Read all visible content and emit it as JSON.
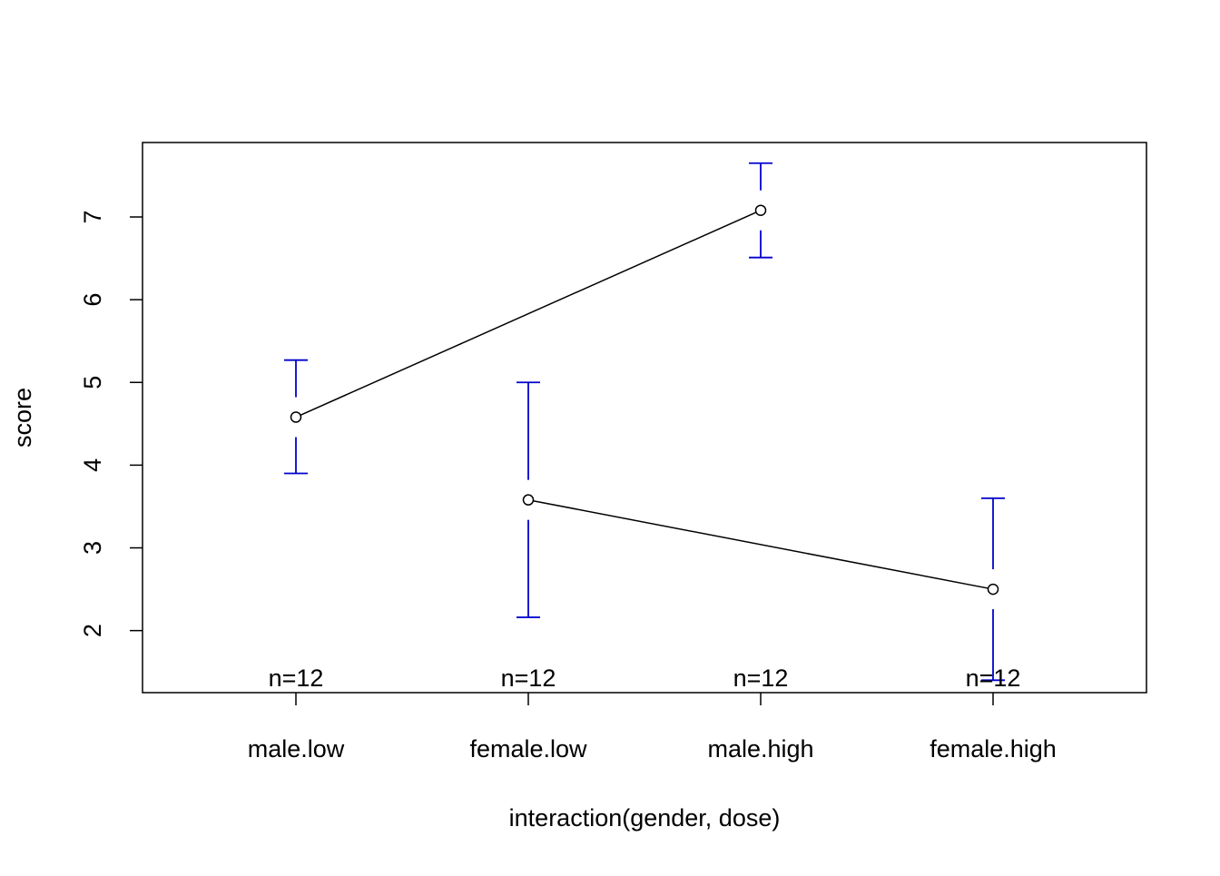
{
  "chart_data": {
    "type": "line",
    "xlabel": "interaction(gender, dose)",
    "ylabel": "score",
    "categories": [
      "male.low",
      "female.low",
      "male.high",
      "female.high"
    ],
    "y_ticks": [
      "2",
      "3",
      "4",
      "5",
      "6",
      "7"
    ],
    "ylim": [
      1.25,
      7.9
    ],
    "grid": false,
    "series": [
      {
        "points": [
          {
            "category": "male.low",
            "y": 4.58
          },
          {
            "category": "male.high",
            "y": 7.08
          }
        ]
      },
      {
        "points": [
          {
            "category": "female.low",
            "y": 3.58
          },
          {
            "category": "female.high",
            "y": 2.5
          }
        ]
      }
    ],
    "error_bars": [
      {
        "category": "male.low",
        "lower": 3.9,
        "upper": 5.27
      },
      {
        "category": "female.low",
        "lower": 2.16,
        "upper": 5.0
      },
      {
        "category": "male.high",
        "lower": 6.51,
        "upper": 7.65
      },
      {
        "category": "female.high",
        "lower": 1.4,
        "upper": 3.6
      }
    ],
    "n_labels": [
      "n=12",
      "n=12",
      "n=12",
      "n=12"
    ],
    "colors": {
      "error_bar": "#0000CD",
      "line": "#000000"
    }
  }
}
